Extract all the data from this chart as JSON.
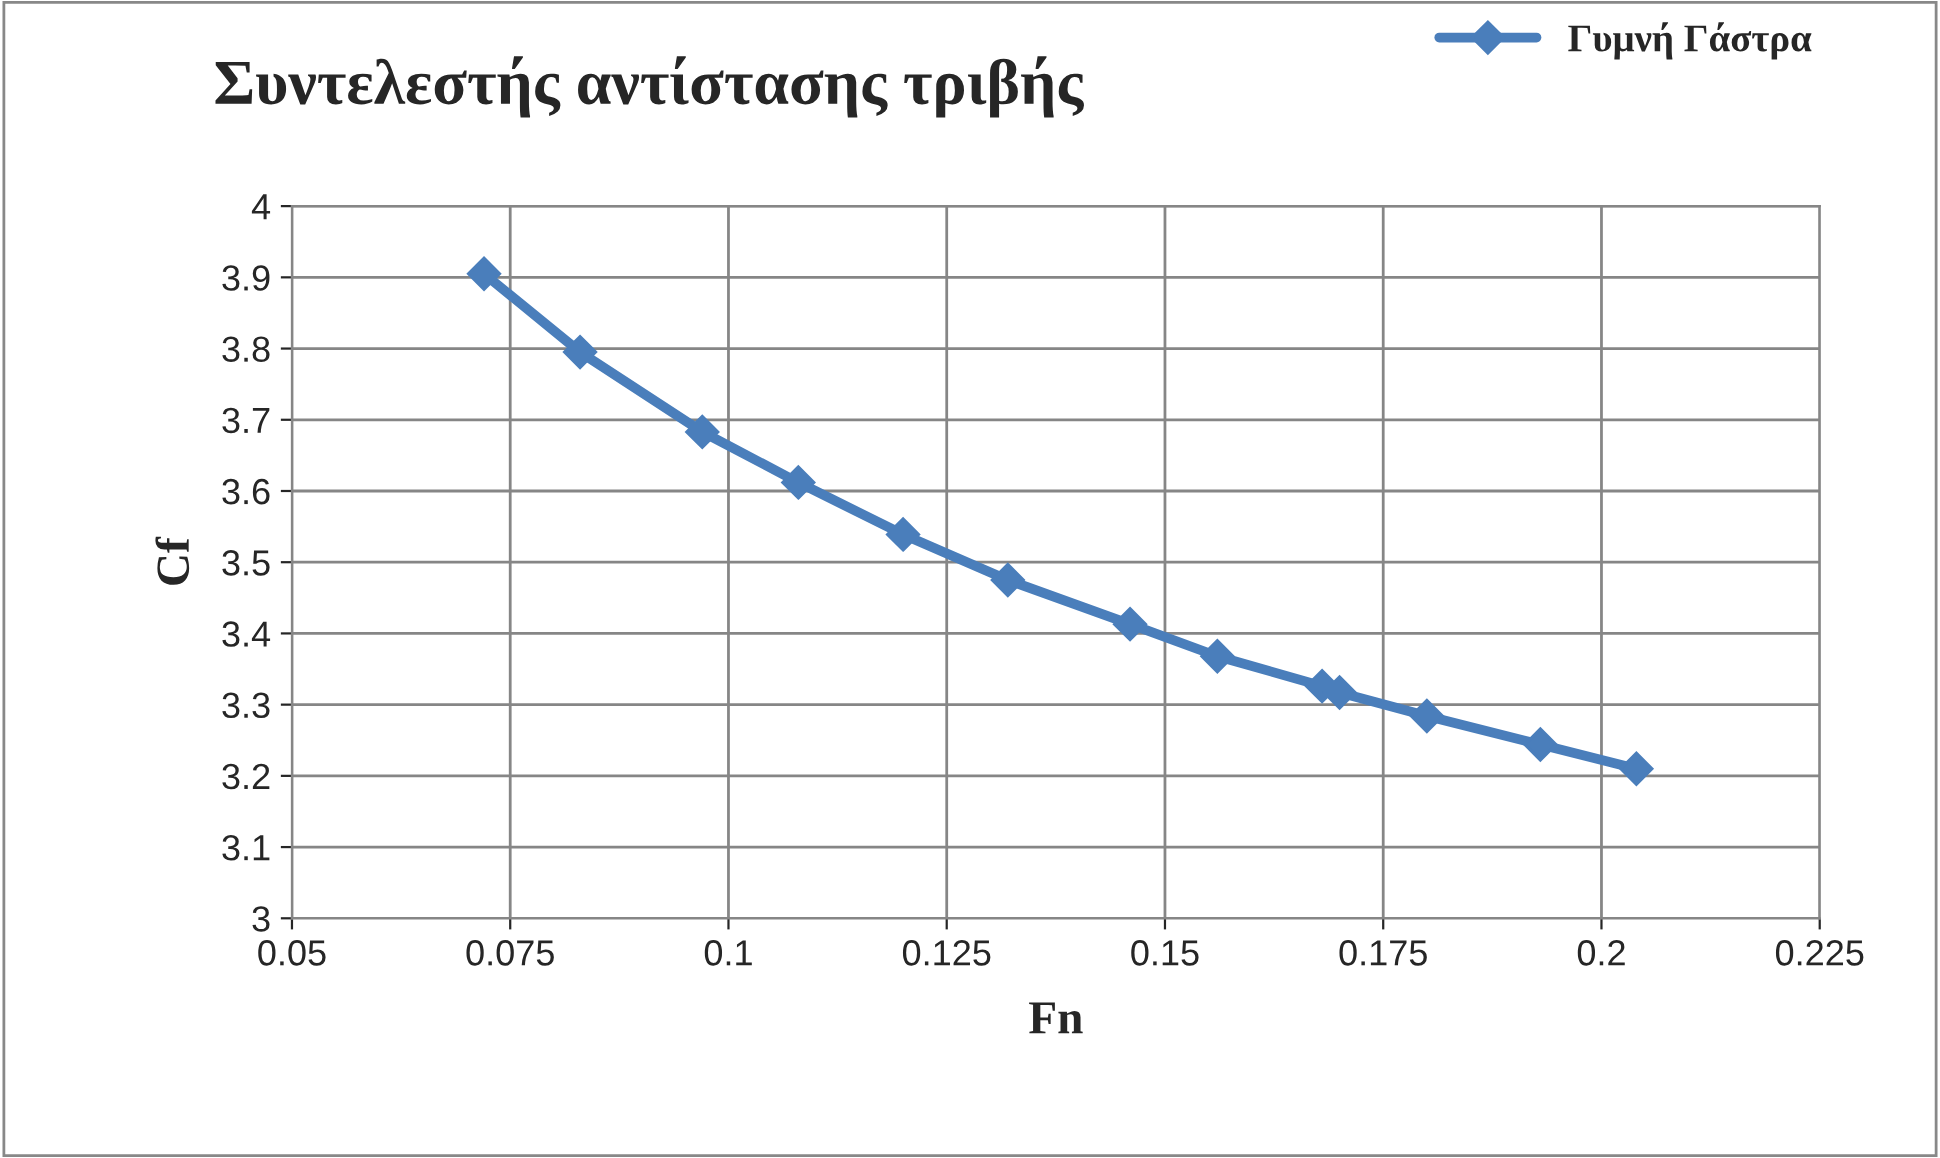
{
  "chart_data": {
    "type": "line",
    "title": "Συντελεστής αντίστασης τριβής",
    "xlabel": "Fn",
    "ylabel": "Cf",
    "x": [
      0.072,
      0.083,
      0.097,
      0.108,
      0.12,
      0.132,
      0.146,
      0.156,
      0.168,
      0.17,
      0.18,
      0.193,
      0.204
    ],
    "series": [
      {
        "name": "Γυμνή Γάστρα",
        "color": "#4a7ebb",
        "values": [
          3.905,
          3.795,
          3.683,
          3.612,
          3.539,
          3.475,
          3.413,
          3.368,
          3.326,
          3.317,
          3.284,
          3.244,
          3.21
        ]
      }
    ],
    "xlim": [
      0.05,
      0.225
    ],
    "xticks": [
      0.05,
      0.075,
      0.1,
      0.125,
      0.15,
      0.175,
      0.2,
      0.225
    ],
    "ylim": [
      3,
      4
    ],
    "yticks": [
      3,
      3.1,
      3.2,
      3.3,
      3.4,
      3.5,
      3.6,
      3.7,
      3.8,
      3.9,
      4
    ],
    "grid": true,
    "legend": "top right",
    "marker": "diamond",
    "line_style": "solid"
  }
}
